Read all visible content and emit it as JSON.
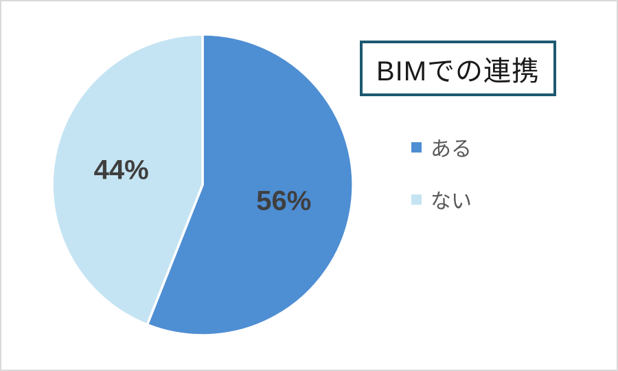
{
  "chart_data": {
    "type": "pie",
    "title": "BIMでの連携",
    "slices": [
      {
        "label": "ある",
        "value": 56,
        "pct": "56%",
        "color": "#4e8ed3"
      },
      {
        "label": "ない",
        "value": 44,
        "pct": "44%",
        "color": "#c5e4f3"
      }
    ],
    "start_angle_deg": 0,
    "direction": "clockwise",
    "legend_position": "right",
    "separator_color": "#ffffff",
    "title_border_color": "#1d5970",
    "title_text_color": "#1a1a1a",
    "data_label_color": "#3f3f3f",
    "legend_text_color": "#595959",
    "background_color": "#ffffff",
    "frame_border_color": "#d9d9d9"
  }
}
